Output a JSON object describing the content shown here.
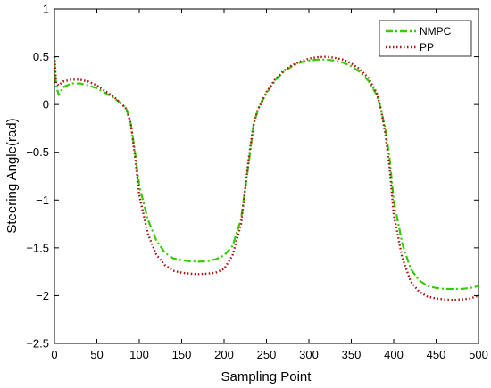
{
  "chart_data": {
    "type": "line",
    "title": "",
    "xlabel": "Sampling Point",
    "ylabel": "Steering Angle(rad)",
    "xlim": [
      0,
      500
    ],
    "ylim": [
      -2.5,
      1
    ],
    "xticks": [
      "0",
      "50",
      "100",
      "150",
      "200",
      "250",
      "300",
      "350",
      "400",
      "450",
      "500"
    ],
    "yticks": [
      "1",
      "0.5",
      "0",
      "−0.5",
      "−1",
      "−1.5",
      "−2",
      "−2.5"
    ],
    "grid": false,
    "legend_position": "top-right",
    "x": [
      0,
      2,
      5,
      10,
      20,
      30,
      40,
      50,
      60,
      70,
      80,
      85,
      90,
      95,
      100,
      110,
      120,
      130,
      140,
      150,
      160,
      170,
      180,
      190,
      200,
      210,
      220,
      230,
      235,
      240,
      250,
      260,
      270,
      280,
      290,
      300,
      310,
      320,
      330,
      340,
      350,
      360,
      370,
      380,
      385,
      390,
      395,
      400,
      410,
      420,
      430,
      440,
      450,
      460,
      470,
      480,
      490,
      500
    ],
    "series": [
      {
        "name": "NMPC",
        "color": "#33cc00",
        "style": "dash-dot",
        "values": [
          0.45,
          0.2,
          0.1,
          0.18,
          0.22,
          0.22,
          0.2,
          0.17,
          0.12,
          0.07,
          0.0,
          -0.05,
          -0.2,
          -0.5,
          -0.85,
          -1.2,
          -1.42,
          -1.55,
          -1.61,
          -1.63,
          -1.64,
          -1.645,
          -1.64,
          -1.62,
          -1.58,
          -1.48,
          -1.2,
          -0.55,
          -0.2,
          -0.05,
          0.12,
          0.25,
          0.34,
          0.4,
          0.44,
          0.46,
          0.47,
          0.47,
          0.46,
          0.44,
          0.4,
          0.34,
          0.25,
          0.1,
          -0.05,
          -0.25,
          -0.55,
          -1.0,
          -1.45,
          -1.72,
          -1.84,
          -1.9,
          -1.92,
          -1.93,
          -1.93,
          -1.93,
          -1.92,
          -1.9
        ]
      },
      {
        "name": "PP",
        "color": "#aa1111",
        "style": "dotted",
        "values": [
          0.5,
          0.22,
          0.2,
          0.24,
          0.26,
          0.26,
          0.24,
          0.2,
          0.14,
          0.08,
          0.0,
          -0.05,
          -0.2,
          -0.55,
          -0.95,
          -1.35,
          -1.57,
          -1.68,
          -1.74,
          -1.76,
          -1.77,
          -1.775,
          -1.77,
          -1.76,
          -1.72,
          -1.58,
          -1.25,
          -0.5,
          -0.2,
          -0.05,
          0.13,
          0.26,
          0.35,
          0.41,
          0.45,
          0.48,
          0.495,
          0.5,
          0.49,
          0.47,
          0.43,
          0.37,
          0.28,
          0.12,
          -0.05,
          -0.3,
          -0.65,
          -1.15,
          -1.6,
          -1.85,
          -1.96,
          -2.01,
          -2.03,
          -2.04,
          -2.045,
          -2.04,
          -2.03,
          -2.0
        ]
      }
    ]
  }
}
